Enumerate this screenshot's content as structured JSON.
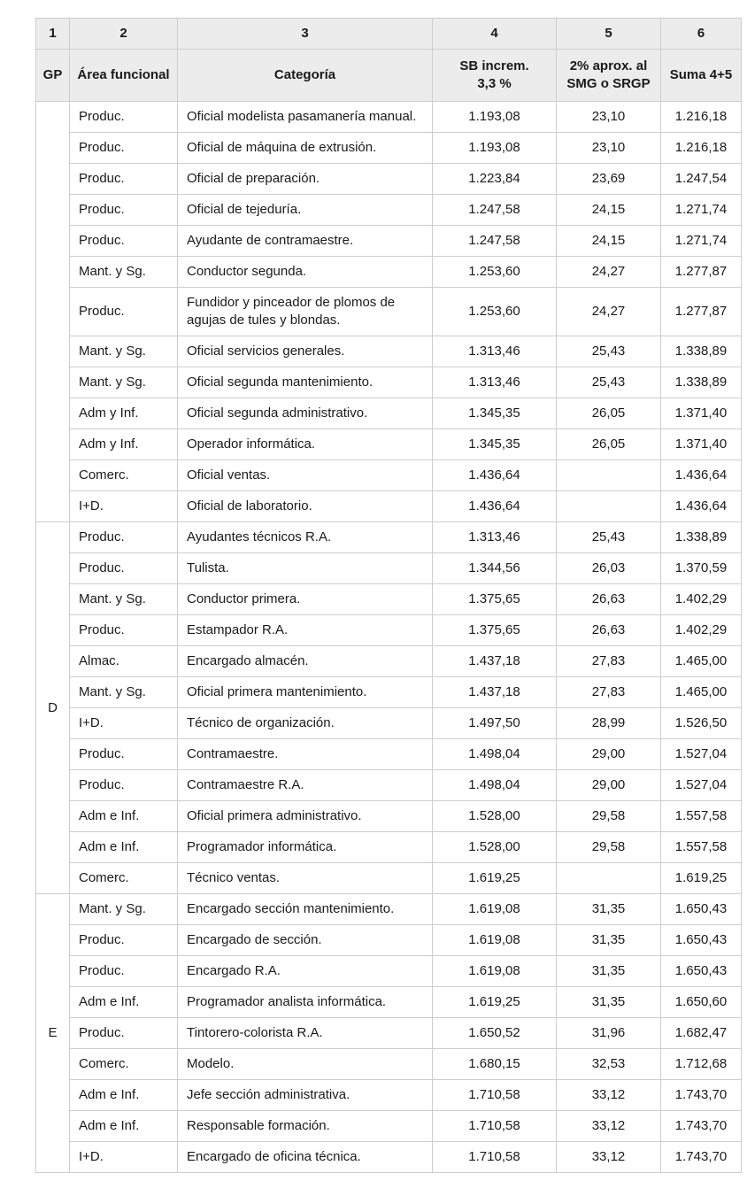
{
  "colors": {
    "header_background": "#ececec",
    "border": "#cdcdcd",
    "text": "#1a1a1a",
    "row_background": "#ffffff"
  },
  "table": {
    "column_numbers": [
      "1",
      "2",
      "3",
      "4",
      "5",
      "6"
    ],
    "column_headers": [
      "GP",
      "Área funcional",
      "Categoría",
      "SB increm.\n3,3 %",
      "2% aprox. al\nSMG o SRGP",
      "Suma 4+5"
    ],
    "groups": [
      {
        "gp": "",
        "rows": [
          {
            "area": "Produc.",
            "categoria": "Oficial modelista pasamanería manual.",
            "col4": "1.193,08",
            "col5": "23,10",
            "col6": "1.216,18"
          },
          {
            "area": "Produc.",
            "categoria": "Oficial de máquina de extrusión.",
            "col4": "1.193,08",
            "col5": "23,10",
            "col6": "1.216,18"
          },
          {
            "area": "Produc.",
            "categoria": "Oficial de preparación.",
            "col4": "1.223,84",
            "col5": "23,69",
            "col6": "1.247,54"
          },
          {
            "area": "Produc.",
            "categoria": "Oficial de tejeduría.",
            "col4": "1.247,58",
            "col5": "24,15",
            "col6": "1.271,74"
          },
          {
            "area": "Produc.",
            "categoria": "Ayudante de contramaestre.",
            "col4": "1.247,58",
            "col5": "24,15",
            "col6": "1.271,74"
          },
          {
            "area": "Mant. y Sg.",
            "categoria": "Conductor segunda.",
            "col4": "1.253,60",
            "col5": "24,27",
            "col6": "1.277,87"
          },
          {
            "area": "Produc.",
            "categoria": "Fundidor y pinceador de plomos de agujas de tules y blondas.",
            "col4": "1.253,60",
            "col5": "24,27",
            "col6": "1.277,87"
          },
          {
            "area": "Mant. y Sg.",
            "categoria": "Oficial servicios generales.",
            "col4": "1.313,46",
            "col5": "25,43",
            "col6": "1.338,89"
          },
          {
            "area": "Mant. y Sg.",
            "categoria": "Oficial segunda mantenimiento.",
            "col4": "1.313,46",
            "col5": "25,43",
            "col6": "1.338,89"
          },
          {
            "area": "Adm y Inf.",
            "categoria": "Oficial segunda administrativo.",
            "col4": "1.345,35",
            "col5": "26,05",
            "col6": "1.371,40"
          },
          {
            "area": "Adm y Inf.",
            "categoria": "Operador informática.",
            "col4": "1.345,35",
            "col5": "26,05",
            "col6": "1.371,40"
          },
          {
            "area": "Comerc.",
            "categoria": "Oficial ventas.",
            "col4": "1.436,64",
            "col5": "",
            "col6": "1.436,64"
          },
          {
            "area": "I+D.",
            "categoria": "Oficial de laboratorio.",
            "col4": "1.436,64",
            "col5": "",
            "col6": "1.436,64"
          }
        ]
      },
      {
        "gp": "D",
        "rows": [
          {
            "area": "Produc.",
            "categoria": "Ayudantes técnicos R.A.",
            "col4": "1.313,46",
            "col5": "25,43",
            "col6": "1.338,89"
          },
          {
            "area": "Produc.",
            "categoria": "Tulista.",
            "col4": "1.344,56",
            "col5": "26,03",
            "col6": "1.370,59"
          },
          {
            "area": "Mant. y Sg.",
            "categoria": "Conductor primera.",
            "col4": "1.375,65",
            "col5": "26,63",
            "col6": "1.402,29"
          },
          {
            "area": "Produc.",
            "categoria": "Estampador R.A.",
            "col4": "1.375,65",
            "col5": "26,63",
            "col6": "1.402,29"
          },
          {
            "area": "Almac.",
            "categoria": "Encargado almacén.",
            "col4": "1.437,18",
            "col5": "27,83",
            "col6": "1.465,00"
          },
          {
            "area": "Mant. y Sg.",
            "categoria": "Oficial primera mantenimiento.",
            "col4": "1.437,18",
            "col5": "27,83",
            "col6": "1.465,00"
          },
          {
            "area": "I+D.",
            "categoria": "Técnico de organización.",
            "col4": "1.497,50",
            "col5": "28,99",
            "col6": "1.526,50"
          },
          {
            "area": "Produc.",
            "categoria": "Contramaestre.",
            "col4": "1.498,04",
            "col5": "29,00",
            "col6": "1.527,04"
          },
          {
            "area": "Produc.",
            "categoria": "Contramaestre R.A.",
            "col4": "1.498,04",
            "col5": "29,00",
            "col6": "1.527,04"
          },
          {
            "area": "Adm e Inf.",
            "categoria": "Oficial primera administrativo.",
            "col4": "1.528,00",
            "col5": "29,58",
            "col6": "1.557,58"
          },
          {
            "area": "Adm e Inf.",
            "categoria": "Programador informática.",
            "col4": "1.528,00",
            "col5": "29,58",
            "col6": "1.557,58"
          },
          {
            "area": "Comerc.",
            "categoria": "Técnico ventas.",
            "col4": "1.619,25",
            "col5": "",
            "col6": "1.619,25"
          }
        ]
      },
      {
        "gp": "E",
        "rows": [
          {
            "area": "Mant. y Sg.",
            "categoria": "Encargado sección mantenimiento.",
            "col4": "1.619,08",
            "col5": "31,35",
            "col6": "1.650,43"
          },
          {
            "area": "Produc.",
            "categoria": "Encargado de sección.",
            "col4": "1.619,08",
            "col5": "31,35",
            "col6": "1.650,43"
          },
          {
            "area": "Produc.",
            "categoria": "Encargado R.A.",
            "col4": "1.619,08",
            "col5": "31,35",
            "col6": "1.650,43"
          },
          {
            "area": "Adm e Inf.",
            "categoria": "Programador analista informática.",
            "col4": "1.619,25",
            "col5": "31,35",
            "col6": "1.650,60"
          },
          {
            "area": "Produc.",
            "categoria": "Tintorero-colorista R.A.",
            "col4": "1.650,52",
            "col5": "31,96",
            "col6": "1.682,47"
          },
          {
            "area": "Comerc.",
            "categoria": "Modelo.",
            "col4": "1.680,15",
            "col5": "32,53",
            "col6": "1.712,68"
          },
          {
            "area": "Adm e Inf.",
            "categoria": "Jefe sección administrativa.",
            "col4": "1.710,58",
            "col5": "33,12",
            "col6": "1.743,70"
          },
          {
            "area": "Adm e Inf.",
            "categoria": "Responsable formación.",
            "col4": "1.710,58",
            "col5": "33,12",
            "col6": "1.743,70"
          },
          {
            "area": "I+D.",
            "categoria": "Encargado de oficina técnica.",
            "col4": "1.710,58",
            "col5": "33,12",
            "col6": "1.743,70"
          }
        ]
      }
    ]
  }
}
